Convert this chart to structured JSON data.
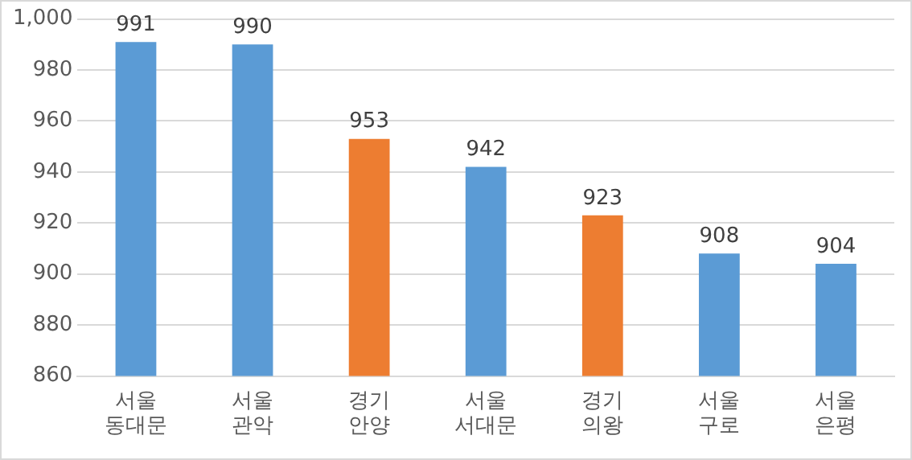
{
  "chart_data": {
    "type": "bar",
    "categories": [
      "서울\n동대문",
      "서울\n관악",
      "경기\n안양",
      "서울\n서대문",
      "경기\n의왕",
      "서울\n구로",
      "서울\n은평"
    ],
    "values": [
      991,
      990,
      953,
      942,
      923,
      908,
      904
    ],
    "colors": [
      "#5b9bd5",
      "#5b9bd5",
      "#ed7d31",
      "#5b9bd5",
      "#ed7d31",
      "#5b9bd5",
      "#5b9bd5"
    ],
    "ylim": [
      860,
      1000
    ],
    "yticks": [
      860,
      880,
      900,
      920,
      940,
      960,
      980,
      {
        "value": 1000,
        "label": "1,000"
      }
    ],
    "grid": "y",
    "data_labels": true,
    "legend": false
  }
}
